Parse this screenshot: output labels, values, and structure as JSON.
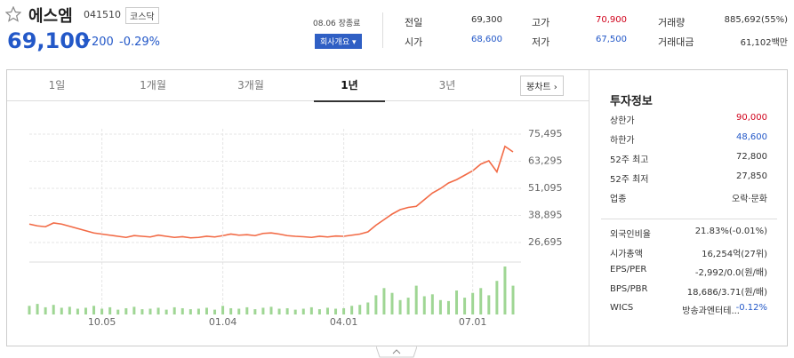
{
  "header": {
    "name": "에스엠",
    "code": "041510",
    "market": "코스닥",
    "price": "69,100",
    "change": "200",
    "change_pct": "-0.29%",
    "status": "08.06 장종료",
    "company_button": "회사개요"
  },
  "summary": [
    {
      "label": "전일",
      "value": "69,300"
    },
    {
      "label": "고가",
      "value": "70,900"
    },
    {
      "label": "거래량",
      "value": "885,692(55%)"
    },
    {
      "label": "시가",
      "value": "68,600"
    },
    {
      "label": "저가",
      "value": "67,500"
    },
    {
      "label": "거래대금",
      "value": "61,102백만"
    }
  ],
  "tabs": [
    "1일",
    "1개월",
    "3개월",
    "1년",
    "3년"
  ],
  "active_tab": 3,
  "chart_button": "봉차트",
  "chart_data": [
    {
      "type": "line",
      "series": [
        {
          "color": "#f26a45",
          "values": [
            35000,
            34200,
            33800,
            35500,
            35000,
            34000,
            33000,
            32000,
            31000,
            30500,
            30000,
            29500,
            29000,
            29800,
            29500,
            29200,
            30000,
            29500,
            29000,
            29300,
            28800,
            29000,
            29500,
            29200,
            29800,
            30500,
            30000,
            30200,
            29800,
            30800,
            31000,
            30500,
            29800,
            29500,
            29300,
            29000,
            29500,
            29200,
            29600,
            29500,
            30000,
            30500,
            31500,
            34500,
            37000,
            39500,
            41500,
            42500,
            43000,
            46000,
            49000,
            51000,
            53500,
            55000,
            57000,
            59000,
            62000,
            63500,
            58500,
            70000,
            67500
          ]
        }
      ],
      "xlim": [
        0,
        60
      ],
      "ylim": [
        26695,
        75495
      ],
      "yticks": [
        {
          "value": 75495,
          "label": "75,495"
        },
        {
          "value": 63295,
          "label": "63,295"
        },
        {
          "value": 51095,
          "label": "51,095"
        },
        {
          "value": 38895,
          "label": "38,895"
        },
        {
          "value": 26695,
          "label": "26,695"
        }
      ],
      "grid": true
    },
    {
      "type": "bar",
      "series": [
        {
          "color": "#9fd694",
          "values": [
            18,
            22,
            15,
            20,
            14,
            16,
            12,
            14,
            18,
            12,
            15,
            10,
            13,
            16,
            11,
            12,
            14,
            10,
            15,
            13,
            11,
            12,
            14,
            10,
            18,
            13,
            12,
            15,
            11,
            14,
            16,
            12,
            13,
            10,
            12,
            15,
            11,
            14,
            12,
            13,
            18,
            20,
            25,
            40,
            55,
            45,
            30,
            35,
            60,
            38,
            42,
            30,
            28,
            50,
            35,
            45,
            55,
            40,
            70,
            100,
            60
          ]
        }
      ],
      "xlim": [
        0,
        60
      ],
      "ylim": [
        0,
        100
      ],
      "xticks": [
        {
          "value": 9,
          "label": "10.05"
        },
        {
          "value": 24,
          "label": "01.04"
        },
        {
          "value": 39,
          "label": "04.01"
        },
        {
          "value": 55,
          "label": "07.01"
        }
      ]
    }
  ],
  "invest": {
    "title": "투자정보",
    "rows_a": [
      {
        "label": "상한가",
        "value": "90,000"
      },
      {
        "label": "하한가",
        "value": "48,600"
      },
      {
        "label": "52주 최고",
        "value": "72,800"
      },
      {
        "label": "52주 최저",
        "value": "27,850"
      },
      {
        "label": "업종",
        "value": "오락·문화"
      }
    ],
    "rows_b": [
      {
        "label": "외국인비율",
        "value": "21.83%(-0.01%)"
      },
      {
        "label": "시가총액",
        "value": "16,254억(27위)"
      },
      {
        "label": "EPS/PER",
        "value": "-2,992/0.0(원/배)"
      },
      {
        "label": "BPS/PBR",
        "value": "18,686/3.71(원/배)"
      },
      {
        "label": "WICS",
        "value": "방송과엔터테...",
        "extra": "-0.12%"
      }
    ]
  }
}
